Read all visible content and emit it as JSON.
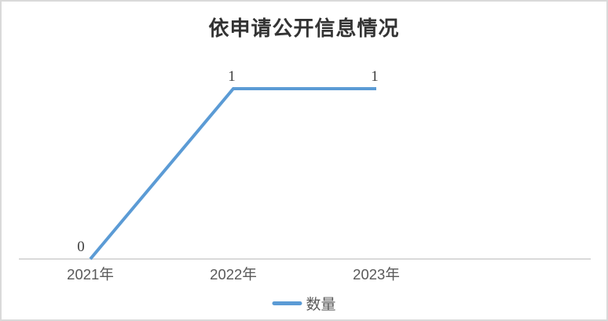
{
  "title": "依申请公开信息情况",
  "legend": {
    "label": "数量"
  },
  "colors": {
    "line": "#5B9BD5",
    "axis": "#D9D9D9",
    "border": "#D9D9D9",
    "axis_label": "#595959",
    "data_label": "#404040",
    "title": "#333333"
  },
  "chart_data": {
    "type": "line",
    "categories": [
      "2021年",
      "2022年",
      "2023年"
    ],
    "series": [
      {
        "name": "数量",
        "values": [
          0,
          1,
          1
        ]
      }
    ],
    "data_labels": [
      0,
      1,
      1
    ],
    "title": "依申请公开信息情况",
    "xlabel": "",
    "ylabel": "",
    "ylim": [
      0,
      1
    ],
    "grid": false,
    "y_axis_visible": false,
    "legend_position": "bottom",
    "line_color": "#5B9BD5"
  }
}
